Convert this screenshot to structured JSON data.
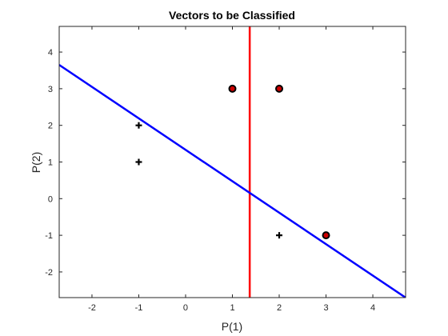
{
  "chart_data": {
    "type": "scatter",
    "title": "Vectors to be Classified",
    "xlabel": "P(1)",
    "ylabel": "P(2)",
    "xlim": [
      -2.7,
      4.7
    ],
    "ylim": [
      -2.7,
      4.7
    ],
    "xticks": [
      -2,
      -1,
      0,
      1,
      2,
      3,
      4
    ],
    "yticks": [
      -2,
      -1,
      0,
      1,
      2,
      3,
      4
    ],
    "grid": false,
    "series": [
      {
        "marker": "plus",
        "color": "#000000",
        "points": [
          [
            -1,
            2
          ],
          [
            -1,
            1
          ],
          [
            2,
            -1
          ]
        ]
      },
      {
        "marker": "circle",
        "color": "#cc0000",
        "edge_color": "#000000",
        "points": [
          [
            1,
            3
          ],
          [
            2,
            3
          ],
          [
            3,
            -1
          ]
        ]
      }
    ],
    "lines": [
      {
        "color": "#ff0000",
        "x1": 1.37,
        "y1": -2.7,
        "x2": 1.37,
        "y2": 4.7
      },
      {
        "color": "#0000ff",
        "x1": -2.7,
        "y1": 3.65,
        "x2": 4.7,
        "y2": -2.7
      }
    ]
  }
}
